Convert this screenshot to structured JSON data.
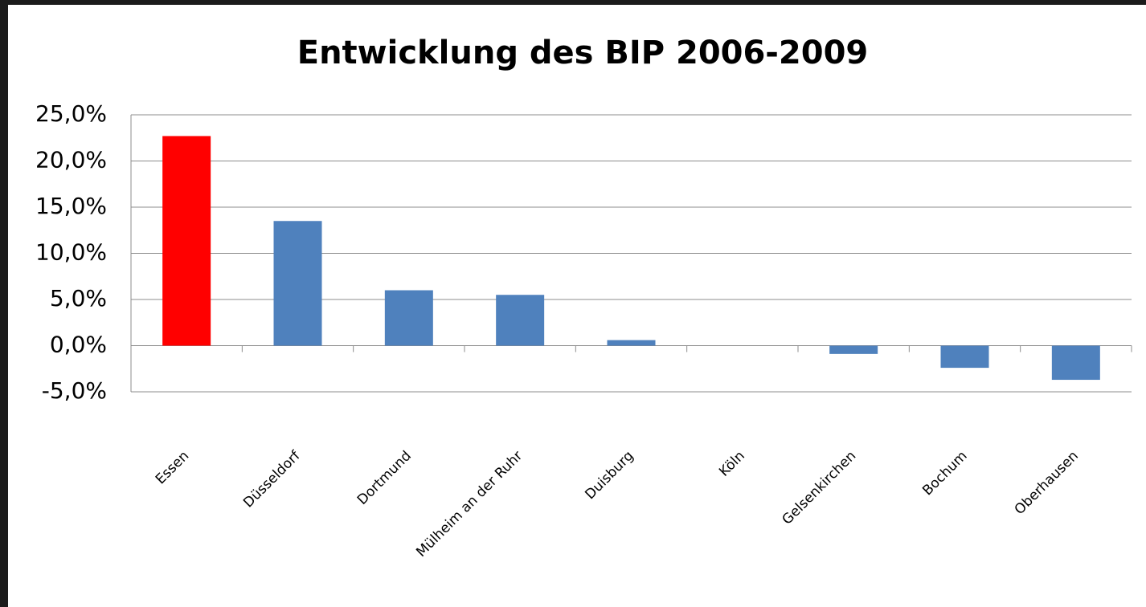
{
  "chart_data": {
    "type": "bar",
    "title": "Entwicklung des BIP 2006-2009",
    "categories": [
      "Essen",
      "Düsseldorf",
      "Dortmund",
      "Mülheim an der Ruhr",
      "Duisburg",
      "Köln",
      "Gelsenkirchen",
      "Bochum",
      "Oberhausen"
    ],
    "values": [
      22.7,
      13.5,
      6.0,
      5.5,
      0.6,
      0,
      -0.9,
      -2.4,
      -3.7
    ],
    "colors": [
      "#ff0000",
      "#4f81bd",
      "#4f81bd",
      "#4f81bd",
      "#4f81bd",
      "#4f81bd",
      "#4f81bd",
      "#4f81bd",
      "#4f81bd"
    ],
    "ylim": [
      -5,
      25
    ],
    "yticks": [
      {
        "value": -5,
        "label": "-5,0%"
      },
      {
        "value": 0,
        "label": "0,0%"
      },
      {
        "value": 5,
        "label": "5,0%"
      },
      {
        "value": 10,
        "label": "10,0%"
      },
      {
        "value": 15,
        "label": "15,0%"
      },
      {
        "value": 20,
        "label": "20,0%"
      },
      {
        "value": 25,
        "label": "25,0%"
      }
    ],
    "grid": true
  }
}
